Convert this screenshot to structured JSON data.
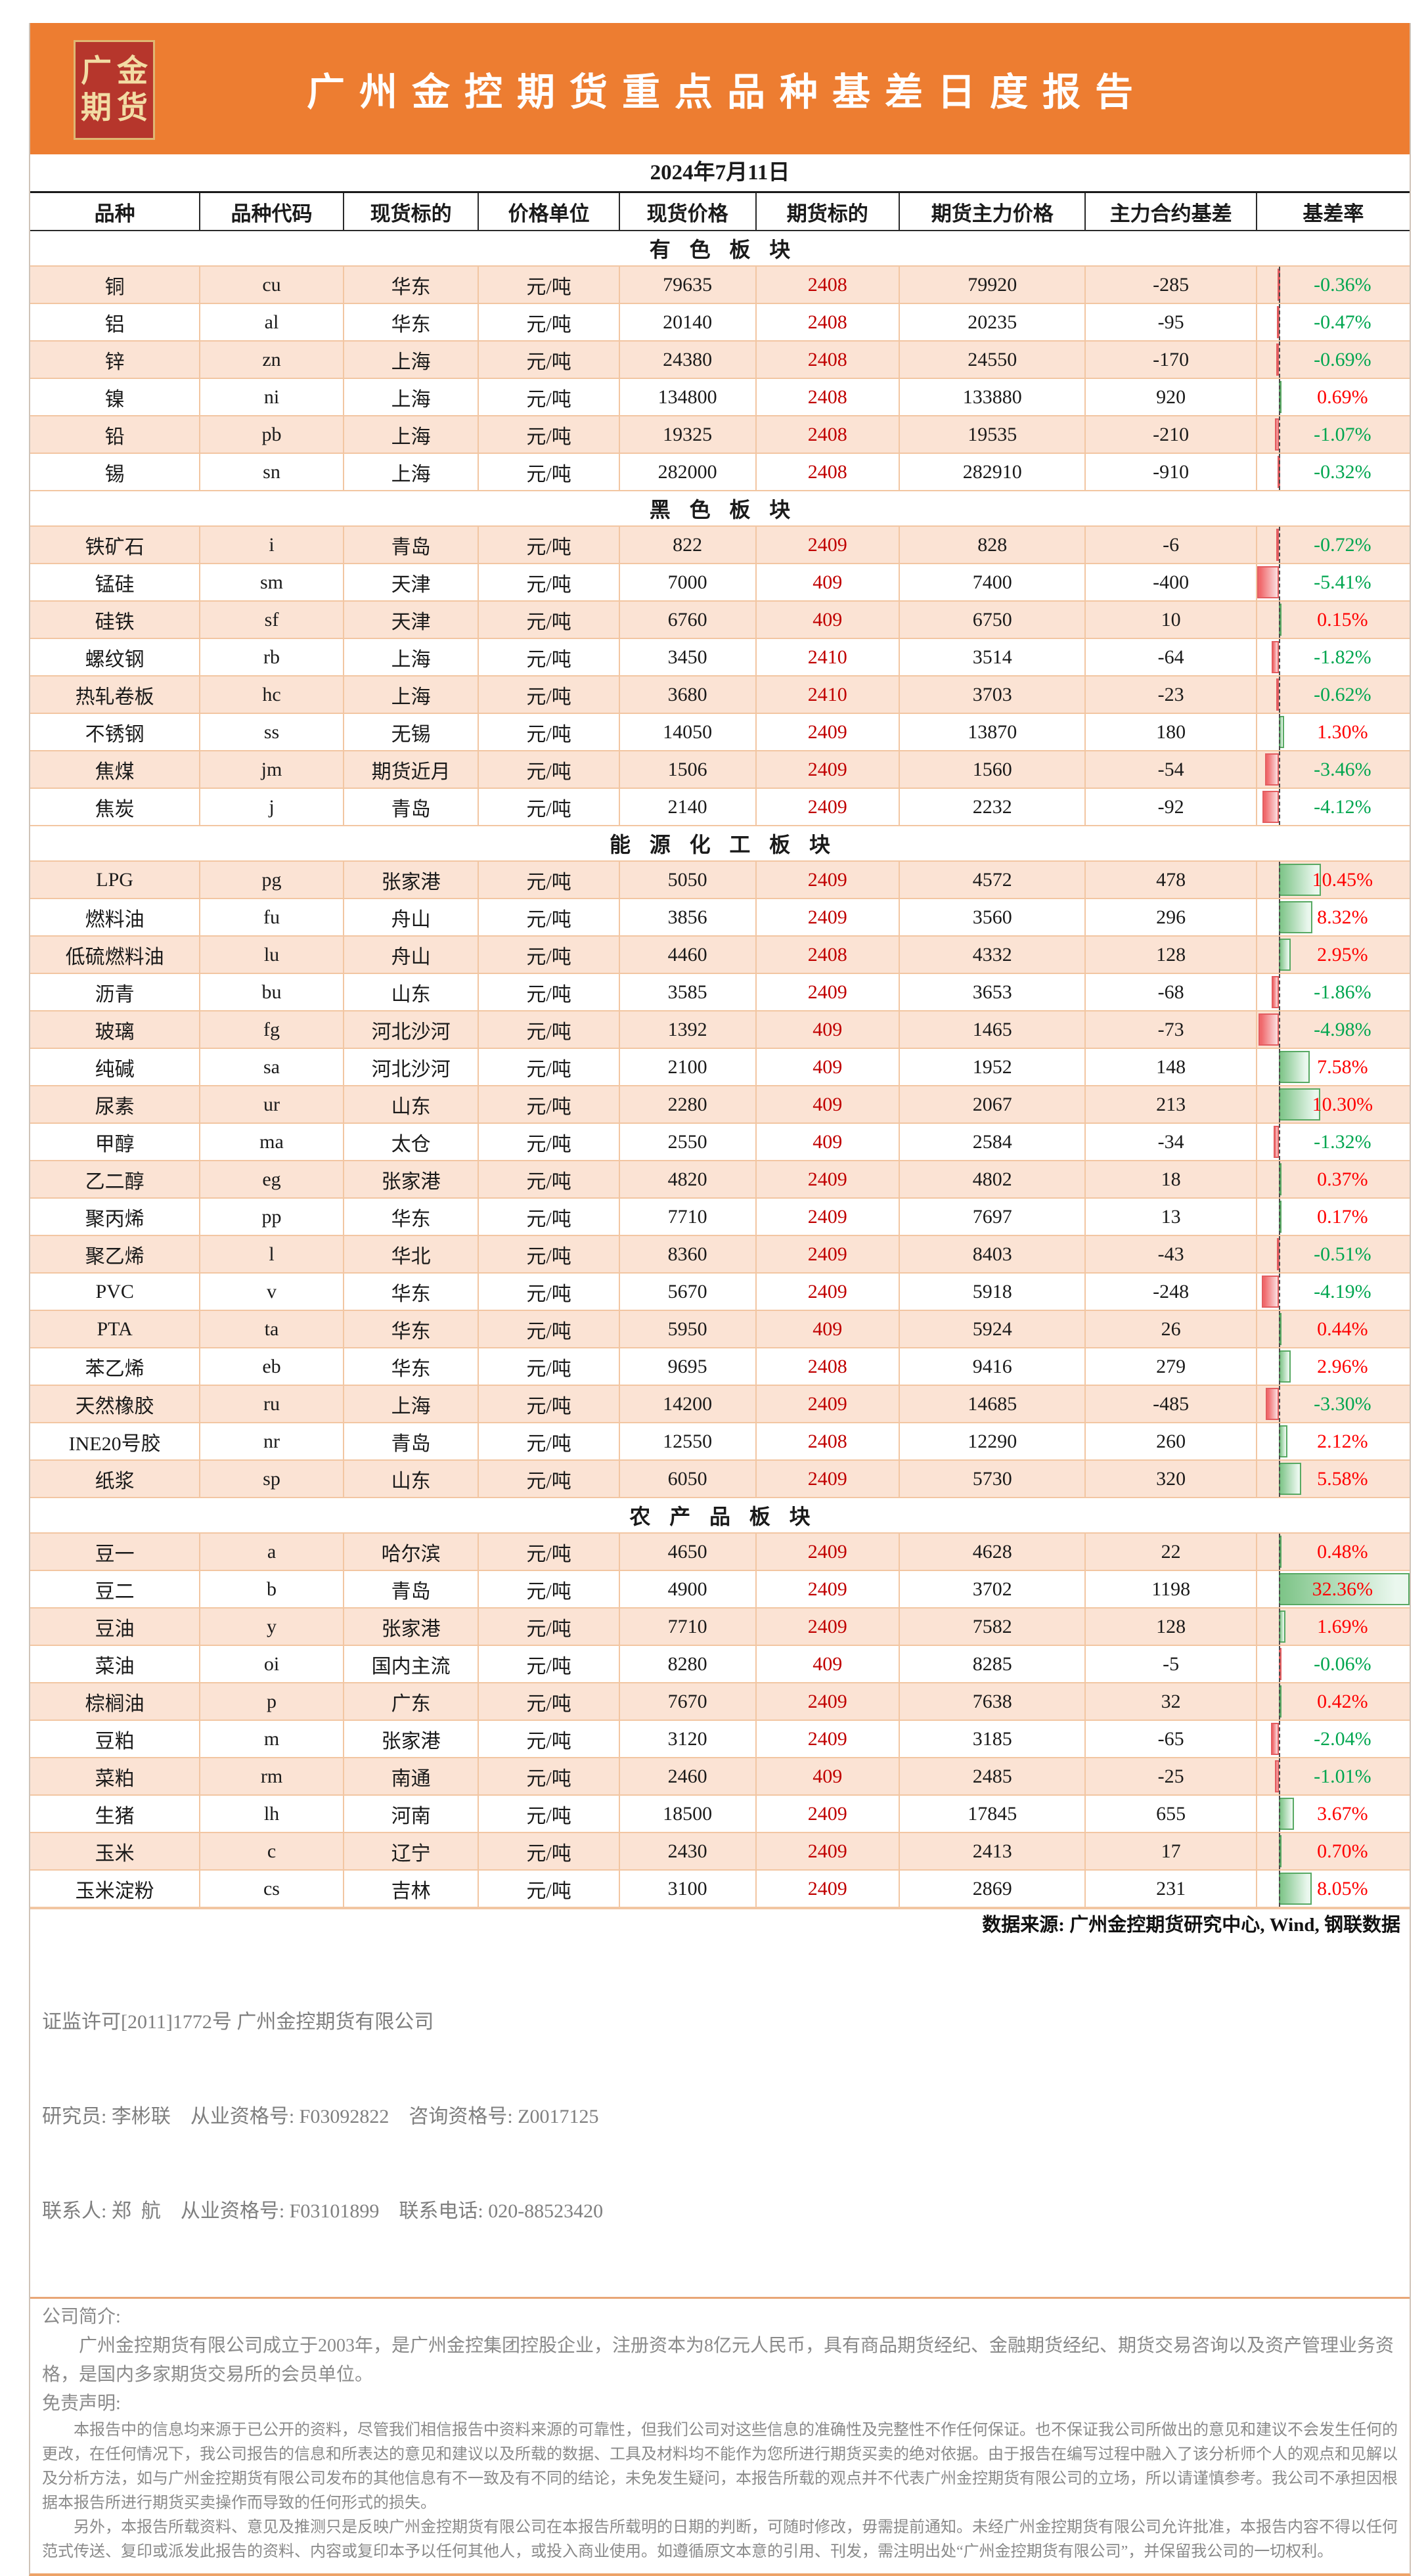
{
  "header": {
    "logo_line1": "广金",
    "logo_line2": "期货",
    "title": "广州金控期货重点品种基差日度报告"
  },
  "report": {
    "date": "2024年7月11日",
    "datasource": "数据来源: 广州金控期货研究中心, Wind, 钢联数据"
  },
  "table": {
    "columns": [
      "品种",
      "品种代码",
      "现货标的",
      "价格单位",
      "现货价格",
      "期货标的",
      "期货主力价格",
      "主力合约基差",
      "基差率"
    ],
    "sections": [
      {
        "id": "nonferrous",
        "label": "有色板块",
        "rows": [
          {
            "name": "铜",
            "code": "cu",
            "spot_target": "华东",
            "unit": "元/吨",
            "spot": "79635",
            "contract": "2408",
            "futures": "79920",
            "basis": "-285",
            "rate": "-0.36%",
            "rate_value": -0.36
          },
          {
            "name": "铝",
            "code": "al",
            "spot_target": "华东",
            "unit": "元/吨",
            "spot": "20140",
            "contract": "2408",
            "futures": "20235",
            "basis": "-95",
            "rate": "-0.47%",
            "rate_value": -0.47
          },
          {
            "name": "锌",
            "code": "zn",
            "spot_target": "上海",
            "unit": "元/吨",
            "spot": "24380",
            "contract": "2408",
            "futures": "24550",
            "basis": "-170",
            "rate": "-0.69%",
            "rate_value": -0.69
          },
          {
            "name": "镍",
            "code": "ni",
            "spot_target": "上海",
            "unit": "元/吨",
            "spot": "134800",
            "contract": "2408",
            "futures": "133880",
            "basis": "920",
            "rate": "0.69%",
            "rate_value": 0.69
          },
          {
            "name": "铅",
            "code": "pb",
            "spot_target": "上海",
            "unit": "元/吨",
            "spot": "19325",
            "contract": "2408",
            "futures": "19535",
            "basis": "-210",
            "rate": "-1.07%",
            "rate_value": -1.07
          },
          {
            "name": "锡",
            "code": "sn",
            "spot_target": "上海",
            "unit": "元/吨",
            "spot": "282000",
            "contract": "2408",
            "futures": "282910",
            "basis": "-910",
            "rate": "-0.32%",
            "rate_value": -0.32
          }
        ]
      },
      {
        "id": "ferrous",
        "label": "黑色板块",
        "rows": [
          {
            "name": "铁矿石",
            "code": "i",
            "spot_target": "青岛",
            "unit": "元/吨",
            "spot": "822",
            "contract": "2409",
            "futures": "828",
            "basis": "-6",
            "rate": "-0.72%",
            "rate_value": -0.72
          },
          {
            "name": "锰硅",
            "code": "sm",
            "spot_target": "天津",
            "unit": "元/吨",
            "spot": "7000",
            "contract": "409",
            "futures": "7400",
            "basis": "-400",
            "rate": "-5.41%",
            "rate_value": -5.41
          },
          {
            "name": "硅铁",
            "code": "sf",
            "spot_target": "天津",
            "unit": "元/吨",
            "spot": "6760",
            "contract": "409",
            "futures": "6750",
            "basis": "10",
            "rate": "0.15%",
            "rate_value": 0.15
          },
          {
            "name": "螺纹钢",
            "code": "rb",
            "spot_target": "上海",
            "unit": "元/吨",
            "spot": "3450",
            "contract": "2410",
            "futures": "3514",
            "basis": "-64",
            "rate": "-1.82%",
            "rate_value": -1.82
          },
          {
            "name": "热轧卷板",
            "code": "hc",
            "spot_target": "上海",
            "unit": "元/吨",
            "spot": "3680",
            "contract": "2410",
            "futures": "3703",
            "basis": "-23",
            "rate": "-0.62%",
            "rate_value": -0.62
          },
          {
            "name": "不锈钢",
            "code": "ss",
            "spot_target": "无锡",
            "unit": "元/吨",
            "spot": "14050",
            "contract": "2409",
            "futures": "13870",
            "basis": "180",
            "rate": "1.30%",
            "rate_value": 1.3
          },
          {
            "name": "焦煤",
            "code": "jm",
            "spot_target": "期货近月",
            "unit": "元/吨",
            "spot": "1506",
            "contract": "2409",
            "futures": "1560",
            "basis": "-54",
            "rate": "-3.46%",
            "rate_value": -3.46
          },
          {
            "name": "焦炭",
            "code": "j",
            "spot_target": "青岛",
            "unit": "元/吨",
            "spot": "2140",
            "contract": "2409",
            "futures": "2232",
            "basis": "-92",
            "rate": "-4.12%",
            "rate_value": -4.12
          }
        ]
      },
      {
        "id": "energy-chemical",
        "label": "能源化工板块",
        "rows": [
          {
            "name": "LPG",
            "code": "pg",
            "spot_target": "张家港",
            "unit": "元/吨",
            "spot": "5050",
            "contract": "2409",
            "futures": "4572",
            "basis": "478",
            "rate": "10.45%",
            "rate_value": 10.45
          },
          {
            "name": "燃料油",
            "code": "fu",
            "spot_target": "舟山",
            "unit": "元/吨",
            "spot": "3856",
            "contract": "2409",
            "futures": "3560",
            "basis": "296",
            "rate": "8.32%",
            "rate_value": 8.32
          },
          {
            "name": "低硫燃料油",
            "code": "lu",
            "spot_target": "舟山",
            "unit": "元/吨",
            "spot": "4460",
            "contract": "2408",
            "futures": "4332",
            "basis": "128",
            "rate": "2.95%",
            "rate_value": 2.95
          },
          {
            "name": "沥青",
            "code": "bu",
            "spot_target": "山东",
            "unit": "元/吨",
            "spot": "3585",
            "contract": "2409",
            "futures": "3653",
            "basis": "-68",
            "rate": "-1.86%",
            "rate_value": -1.86
          },
          {
            "name": "玻璃",
            "code": "fg",
            "spot_target": "河北沙河",
            "unit": "元/吨",
            "spot": "1392",
            "contract": "409",
            "futures": "1465",
            "basis": "-73",
            "rate": "-4.98%",
            "rate_value": -4.98
          },
          {
            "name": "纯碱",
            "code": "sa",
            "spot_target": "河北沙河",
            "unit": "元/吨",
            "spot": "2100",
            "contract": "409",
            "futures": "1952",
            "basis": "148",
            "rate": "7.58%",
            "rate_value": 7.58
          },
          {
            "name": "尿素",
            "code": "ur",
            "spot_target": "山东",
            "unit": "元/吨",
            "spot": "2280",
            "contract": "409",
            "futures": "2067",
            "basis": "213",
            "rate": "10.30%",
            "rate_value": 10.3
          },
          {
            "name": "甲醇",
            "code": "ma",
            "spot_target": "太仓",
            "unit": "元/吨",
            "spot": "2550",
            "contract": "409",
            "futures": "2584",
            "basis": "-34",
            "rate": "-1.32%",
            "rate_value": -1.32
          },
          {
            "name": "乙二醇",
            "code": "eg",
            "spot_target": "张家港",
            "unit": "元/吨",
            "spot": "4820",
            "contract": "2409",
            "futures": "4802",
            "basis": "18",
            "rate": "0.37%",
            "rate_value": 0.37
          },
          {
            "name": "聚丙烯",
            "code": "pp",
            "spot_target": "华东",
            "unit": "元/吨",
            "spot": "7710",
            "contract": "2409",
            "futures": "7697",
            "basis": "13",
            "rate": "0.17%",
            "rate_value": 0.17
          },
          {
            "name": "聚乙烯",
            "code": "l",
            "spot_target": "华北",
            "unit": "元/吨",
            "spot": "8360",
            "contract": "2409",
            "futures": "8403",
            "basis": "-43",
            "rate": "-0.51%",
            "rate_value": -0.51
          },
          {
            "name": "PVC",
            "code": "v",
            "spot_target": "华东",
            "unit": "元/吨",
            "spot": "5670",
            "contract": "2409",
            "futures": "5918",
            "basis": "-248",
            "rate": "-4.19%",
            "rate_value": -4.19
          },
          {
            "name": "PTA",
            "code": "ta",
            "spot_target": "华东",
            "unit": "元/吨",
            "spot": "5950",
            "contract": "409",
            "futures": "5924",
            "basis": "26",
            "rate": "0.44%",
            "rate_value": 0.44
          },
          {
            "name": "苯乙烯",
            "code": "eb",
            "spot_target": "华东",
            "unit": "元/吨",
            "spot": "9695",
            "contract": "2408",
            "futures": "9416",
            "basis": "279",
            "rate": "2.96%",
            "rate_value": 2.96
          },
          {
            "name": "天然橡胶",
            "code": "ru",
            "spot_target": "上海",
            "unit": "元/吨",
            "spot": "14200",
            "contract": "2409",
            "futures": "14685",
            "basis": "-485",
            "rate": "-3.30%",
            "rate_value": -3.3
          },
          {
            "name": "INE20号胶",
            "code": "nr",
            "spot_target": "青岛",
            "unit": "元/吨",
            "spot": "12550",
            "contract": "2408",
            "futures": "12290",
            "basis": "260",
            "rate": "2.12%",
            "rate_value": 2.12
          },
          {
            "name": "纸浆",
            "code": "sp",
            "spot_target": "山东",
            "unit": "元/吨",
            "spot": "6050",
            "contract": "2409",
            "futures": "5730",
            "basis": "320",
            "rate": "5.58%",
            "rate_value": 5.58
          }
        ]
      },
      {
        "id": "agricultural",
        "label": "农产品板块",
        "rows": [
          {
            "name": "豆一",
            "code": "a",
            "spot_target": "哈尔滨",
            "unit": "元/吨",
            "spot": "4650",
            "contract": "2409",
            "futures": "4628",
            "basis": "22",
            "rate": "0.48%",
            "rate_value": 0.48
          },
          {
            "name": "豆二",
            "code": "b",
            "spot_target": "青岛",
            "unit": "元/吨",
            "spot": "4900",
            "contract": "2409",
            "futures": "3702",
            "basis": "1198",
            "rate": "32.36%",
            "rate_value": 32.36
          },
          {
            "name": "豆油",
            "code": "y",
            "spot_target": "张家港",
            "unit": "元/吨",
            "spot": "7710",
            "contract": "2409",
            "futures": "7582",
            "basis": "128",
            "rate": "1.69%",
            "rate_value": 1.69
          },
          {
            "name": "菜油",
            "code": "oi",
            "spot_target": "国内主流",
            "unit": "元/吨",
            "spot": "8280",
            "contract": "409",
            "futures": "8285",
            "basis": "-5",
            "rate": "-0.06%",
            "rate_value": -0.06
          },
          {
            "name": "棕榈油",
            "code": "p",
            "spot_target": "广东",
            "unit": "元/吨",
            "spot": "7670",
            "contract": "2409",
            "futures": "7638",
            "basis": "32",
            "rate": "0.42%",
            "rate_value": 0.42
          },
          {
            "name": "豆粕",
            "code": "m",
            "spot_target": "张家港",
            "unit": "元/吨",
            "spot": "3120",
            "contract": "2409",
            "futures": "3185",
            "basis": "-65",
            "rate": "-2.04%",
            "rate_value": -2.04
          },
          {
            "name": "菜粕",
            "code": "rm",
            "spot_target": "南通",
            "unit": "元/吨",
            "spot": "2460",
            "contract": "409",
            "futures": "2485",
            "basis": "-25",
            "rate": "-1.01%",
            "rate_value": -1.01
          },
          {
            "name": "生猪",
            "code": "lh",
            "spot_target": "河南",
            "unit": "元/吨",
            "spot": "18500",
            "contract": "2409",
            "futures": "17845",
            "basis": "655",
            "rate": "3.67%",
            "rate_value": 3.67
          },
          {
            "name": "玉米",
            "code": "c",
            "spot_target": "辽宁",
            "unit": "元/吨",
            "spot": "2430",
            "contract": "2409",
            "futures": "2413",
            "basis": "17",
            "rate": "0.70%",
            "rate_value": 0.7
          },
          {
            "name": "玉米淀粉",
            "code": "cs",
            "spot_target": "吉林",
            "unit": "元/吨",
            "spot": "3100",
            "contract": "2409",
            "futures": "2869",
            "basis": "231",
            "rate": "8.05%",
            "rate_value": 8.05
          }
        ]
      }
    ]
  },
  "databar": {
    "min": -5.41,
    "max": 32.36
  },
  "footer": {
    "license": "证监许可[2011]1772号 广州金控期货有限公司",
    "researcher_line": "研究员: 李彬联    从业资格号: F03092822    咨询资格号: Z0017125",
    "contact_line": "联系人: 郑  航    从业资格号: F03101899    联系电话: 020-88523420",
    "about_label": "公司简介:",
    "about_text": "广州金控期货有限公司成立于2003年，是广州金控集团控股企业，注册资本为8亿元人民币，具有商品期货经纪、金融期货经纪、期货交易咨询以及资产管理业务资格，是国内多家期货交易所的会员单位。",
    "disclaimer_label": "免责声明:",
    "disclaimer_p1": "本报告中的信息均来源于已公开的资料，尽管我们相信报告中资料来源的可靠性，但我们公司对这些信息的准确性及完整性不作任何保证。也不保证我公司所做出的意见和建议不会发生任何的更改，在任何情况下，我公司报告的信息和所表达的意见和建议以及所载的数据、工具及材料均不能作为您所进行期货买卖的绝对依据。由于报告在编写过程中融入了该分析师个人的观点和见解以及分析方法，如与广州金控期货有限公司发布的其他信息有不一致及有不同的结论，未免发生疑问，本报告所载的观点并不代表广州金控期货有限公司的立场，所以请谨慎参考。我公司不承担因根据本报告所进行期货买卖操作而导致的任何形式的损失。",
    "disclaimer_p2": "另外，本报告所载资料、意见及推测只是反映广州金控期货有限公司在本报告所载明的日期的判断，可随时修改，毋需提前通知。未经广州金控期货有限公司允许批准，本报告内容不得以任何范式传送、复印或派发此报告的资料、内容或复印本予以任何其他人，或投入商业使用。如遵循原文本意的引用、刊发，需注明出处“广州金控期货有限公司”，并保留我公司的一切权利。"
  },
  "colors": {
    "banner_orange": "#ED7D31",
    "row_peach": "#FBE3D4",
    "row_border": "#F2C6A2",
    "positive_rate_text": "#FE0000",
    "negative_rate_text": "#00A650",
    "contract_code_red": "#C00000",
    "bar_positive": "#63BE7B",
    "bar_negative": "#F1696B",
    "logo_red": "#B6362C",
    "logo_gold": "#F2DCA4",
    "footer_gray": "#7f7f7f"
  }
}
